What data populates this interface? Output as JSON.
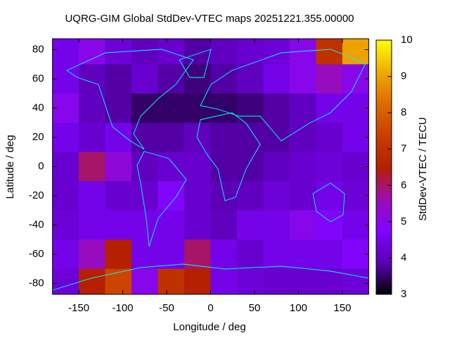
{
  "chart_data": {
    "type": "heatmap",
    "title": "UQRG-GIM Global StdDev-VTEC maps 20251221.355.00000",
    "xlabel": "Longitude / deg",
    "ylabel": "Latitude / deg",
    "colorbar_label": "StdDev-VTEC / TECU",
    "x": [
      -165,
      -135,
      -105,
      -75,
      -45,
      -15,
      15,
      45,
      75,
      105,
      135,
      165
    ],
    "y": [
      80,
      60,
      40,
      20,
      0,
      -20,
      -40,
      -60,
      -80
    ],
    "z": [
      [
        4.5,
        5,
        4.3,
        4,
        4.2,
        3.8,
        4,
        4.2,
        4.3,
        5,
        7,
        9
      ],
      [
        4.5,
        4,
        3.8,
        4.2,
        3.8,
        3.6,
        3.8,
        4,
        4.5,
        5,
        5.5,
        5
      ],
      [
        5,
        4,
        3.8,
        3.5,
        3.5,
        3.5,
        3.5,
        3.6,
        3.8,
        4,
        4.5,
        4.5
      ],
      [
        4.5,
        4.2,
        4.5,
        3.8,
        3.8,
        4,
        3.8,
        3.8,
        3.8,
        4,
        4.2,
        4.5
      ],
      [
        4.2,
        6,
        5.2,
        4,
        4.2,
        4.2,
        3.8,
        3.8,
        4,
        4.2,
        4.3,
        4.2
      ],
      [
        4.2,
        4.5,
        4.2,
        4.2,
        4.8,
        4.2,
        3.9,
        4,
        4.3,
        4.2,
        4.5,
        4.3
      ],
      [
        4.3,
        4.5,
        4.5,
        4.5,
        4.5,
        4.2,
        4,
        4.5,
        4.5,
        5,
        4.8,
        4.5
      ],
      [
        4.5,
        5.5,
        6.5,
        4.5,
        4.5,
        6,
        4.5,
        4.2,
        4.5,
        4.5,
        4.5,
        4.8
      ],
      [
        4.3,
        6.5,
        7.5,
        5,
        7,
        6.5,
        4.5,
        4.3,
        4.2,
        4.2,
        4.2,
        4.3
      ]
    ],
    "xlim": [
      -180,
      180
    ],
    "ylim": [
      -87.5,
      87.5
    ],
    "zlim": [
      3,
      10
    ],
    "xticks": [
      -150,
      -100,
      -50,
      0,
      50,
      100,
      150
    ],
    "yticks": [
      -80,
      -60,
      -40,
      -20,
      0,
      20,
      40,
      60,
      80
    ],
    "zticks": [
      3,
      4,
      5,
      6,
      7,
      8,
      9,
      10
    ],
    "colormap": [
      "#000000",
      "#5a00b4",
      "#8004ff",
      "#9c0db4",
      "#b42000",
      "#c93e00",
      "#dd6b00",
      "#efab00",
      "#ffff00"
    ]
  }
}
